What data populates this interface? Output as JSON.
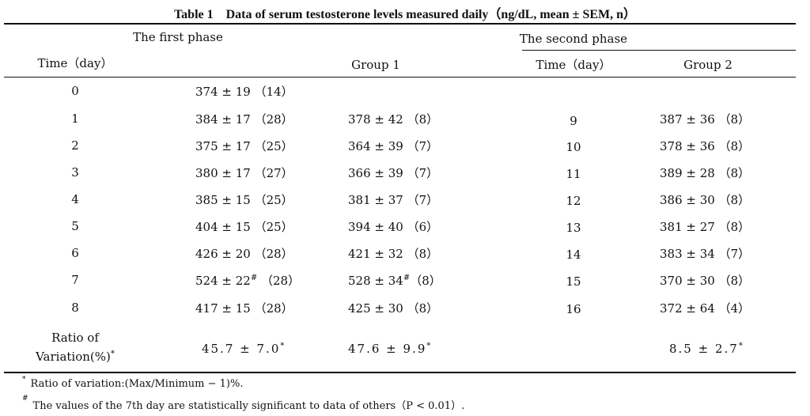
{
  "caption": {
    "label": "Table 1",
    "text": "Data of serum testosterone levels measured daily（ng/dL, mean ± SEM, n）"
  },
  "phases": {
    "first": "The first phase",
    "second": "The second phase"
  },
  "headers": {
    "time1": "Time（day）",
    "group1": "Group 1",
    "time2": "Time（day）",
    "group2": "Group 2"
  },
  "rows": [
    {
      "day1": "0",
      "first": "374 ± 19 （14）",
      "first_mark": "",
      "group1": "",
      "group1_mark": "",
      "day2": "",
      "group2": ""
    },
    {
      "day1": "1",
      "first": "384 ± 17 （28）",
      "first_mark": "",
      "group1": "378 ± 42 （8）",
      "group1_mark": "",
      "day2": "9",
      "group2": "387 ± 36 （8）"
    },
    {
      "day1": "2",
      "first": "375 ± 17 （25）",
      "first_mark": "",
      "group1": "364 ± 39 （7）",
      "group1_mark": "",
      "day2": "10",
      "group2": "378 ± 36 （8）"
    },
    {
      "day1": "3",
      "first": "380 ± 17 （27）",
      "first_mark": "",
      "group1": "366 ± 39 （7）",
      "group1_mark": "",
      "day2": "11",
      "group2": "389 ± 28 （8）"
    },
    {
      "day1": "4",
      "first": "385 ± 15 （25）",
      "first_mark": "",
      "group1": "381 ± 37 （7）",
      "group1_mark": "",
      "day2": "12",
      "group2": "386 ± 30 （8）"
    },
    {
      "day1": "5",
      "first": "404 ± 15 （25）",
      "first_mark": "",
      "group1": "394 ± 40 （6）",
      "group1_mark": "",
      "day2": "13",
      "group2": "381 ± 27 （8）"
    },
    {
      "day1": "6",
      "first": "426 ± 20 （28）",
      "first_mark": "",
      "group1": "421 ± 32 （8）",
      "group1_mark": "",
      "day2": "14",
      "group2": "383 ± 34 （7）"
    },
    {
      "day1": "7",
      "first": "524 ± 22",
      "first_mark": "#",
      "first_n": "（28）",
      "group1": "528 ± 34",
      "group1_mark": "#",
      "group1_n": "（8）",
      "day2": "15",
      "group2": "370 ± 30 （8）"
    },
    {
      "day1": "8",
      "first": "417 ± 15 （28）",
      "first_mark": "",
      "group1": "425 ± 30 （8）",
      "group1_mark": "",
      "day2": "16",
      "group2": "372 ± 64 （4）"
    }
  ],
  "ratio": {
    "label_line1": "Ratio of",
    "label_line2": "Variation(%)",
    "label_mark": "*",
    "first": "45.7 ± 7.0",
    "group1": "47.6 ± 9.9",
    "group2": "8.5 ± 2.7",
    "mark": "*"
  },
  "footnotes": [
    {
      "mark": "*",
      "text": "Ratio of variation:(Max/Minimum − 1)%."
    },
    {
      "mark": "#",
      "text": "The values of the 7th day are statistically significant to data of others（P < 0.01）."
    }
  ]
}
